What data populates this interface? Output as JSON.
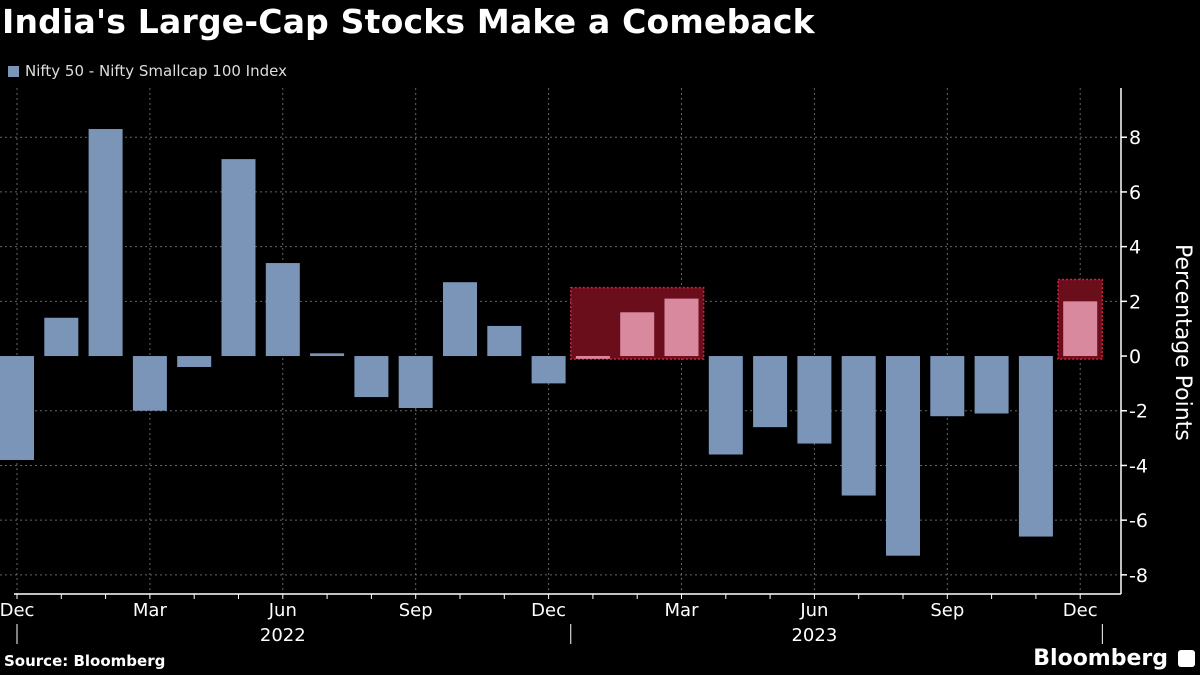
{
  "title": "India's Large-Cap Stocks Make a Comeback",
  "source": "Source: Bloomberg",
  "brand": "Bloomberg",
  "chart_data": {
    "type": "bar",
    "title": "India's Large-Cap Stocks Make a Comeback",
    "ylabel": "Percentage Points",
    "ylim": [
      -8.7,
      9.8
    ],
    "yticks": [
      -8,
      -6,
      -4,
      -2,
      0,
      2,
      4,
      6,
      8
    ],
    "grid": true,
    "legend_position": "top-left",
    "x_tick_labels": [
      "Dec",
      "Mar",
      "Jun",
      "Sep",
      "Dec",
      "Mar",
      "Jun",
      "Sep",
      "Dec"
    ],
    "x_tick_months": [
      "2021-12",
      "2022-03",
      "2022-06",
      "2022-09",
      "2022-12",
      "2023-03",
      "2023-06",
      "2023-09",
      "2023-12"
    ],
    "year_labels": [
      {
        "label": "2022",
        "month": "2022-06"
      },
      {
        "label": "2023",
        "month": "2023-06"
      }
    ],
    "colors": {
      "bar": "#7b95b8",
      "highlight_bar": "#d9899e",
      "highlight_box": "#6b0e1c",
      "highlight_border": "#d0243c"
    },
    "highlights": [
      {
        "from": "2023-01",
        "to": "2023-03",
        "ymax": 2.5
      },
      {
        "from": "2023-12",
        "to": "2023-12",
        "ymax": 2.8
      }
    ],
    "categories": [
      "2021-12",
      "2022-01",
      "2022-02",
      "2022-03",
      "2022-04",
      "2022-05",
      "2022-06",
      "2022-07",
      "2022-08",
      "2022-09",
      "2022-10",
      "2022-11",
      "2022-12",
      "2023-01",
      "2023-02",
      "2023-03",
      "2023-04",
      "2023-05",
      "2023-06",
      "2023-07",
      "2023-08",
      "2023-09",
      "2023-10",
      "2023-11",
      "2023-12"
    ],
    "series": [
      {
        "name": "Nifty 50 - Nifty Smallcap 100 Index",
        "values": [
          -3.8,
          1.4,
          8.3,
          -2.0,
          -0.4,
          7.2,
          3.4,
          0.1,
          -1.5,
          -1.9,
          2.7,
          1.1,
          -1.0,
          -0.1,
          1.6,
          2.1,
          -3.6,
          -2.6,
          -3.2,
          -5.1,
          -7.3,
          -2.2,
          -2.1,
          -6.6,
          2.0
        ]
      }
    ]
  }
}
